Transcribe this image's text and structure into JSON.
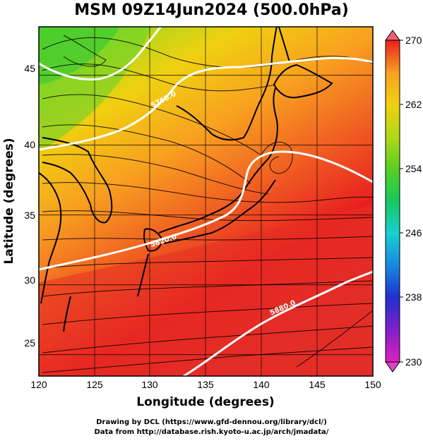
{
  "title": "MSM 09Z14Jun2024 (500.0hPa)",
  "xlabel": "Longitude (degrees)",
  "ylabel": "Latitude  (degrees)",
  "x_ticks": [
    "120",
    "125",
    "130",
    "135",
    "140",
    "145",
    "150"
  ],
  "y_ticks": [
    "25",
    "30",
    "35",
    "40",
    "45"
  ],
  "colorbar": {
    "ticks": [
      "230",
      "238",
      "246",
      "254",
      "262",
      "270"
    ],
    "colors": [
      "#e020c0",
      "#8020c8",
      "#2030d0",
      "#1888e0",
      "#18d0d0",
      "#18c860",
      "#58d020",
      "#b0d818",
      "#f0d010",
      "#f8a020",
      "#f06020",
      "#e82020"
    ]
  },
  "contour_labels": [
    "5760.0",
    "5820.0",
    "5880.0"
  ],
  "credits": {
    "line1": "Drawing by DCL (https://www.gfd-dennou.org/library/dcl/)",
    "line2": "Data from http://database.rish.kyoto-u.ac.jp/arch/jmadata/"
  },
  "chart_data": {
    "type": "heatmap",
    "title": "MSM 09Z14Jun2024 (500.0hPa)",
    "xlabel": "Longitude (degrees)",
    "ylabel": "Latitude  (degrees)",
    "xlim": [
      120,
      150
    ],
    "ylim": [
      22.5,
      47.5
    ],
    "colorbar_range": [
      230,
      270
    ],
    "contour_levels": [
      5760,
      5820,
      5880
    ],
    "colors": {
      "land_outline": "#000000",
      "contour": "#ffffff",
      "streamline": "#000000"
    }
  }
}
